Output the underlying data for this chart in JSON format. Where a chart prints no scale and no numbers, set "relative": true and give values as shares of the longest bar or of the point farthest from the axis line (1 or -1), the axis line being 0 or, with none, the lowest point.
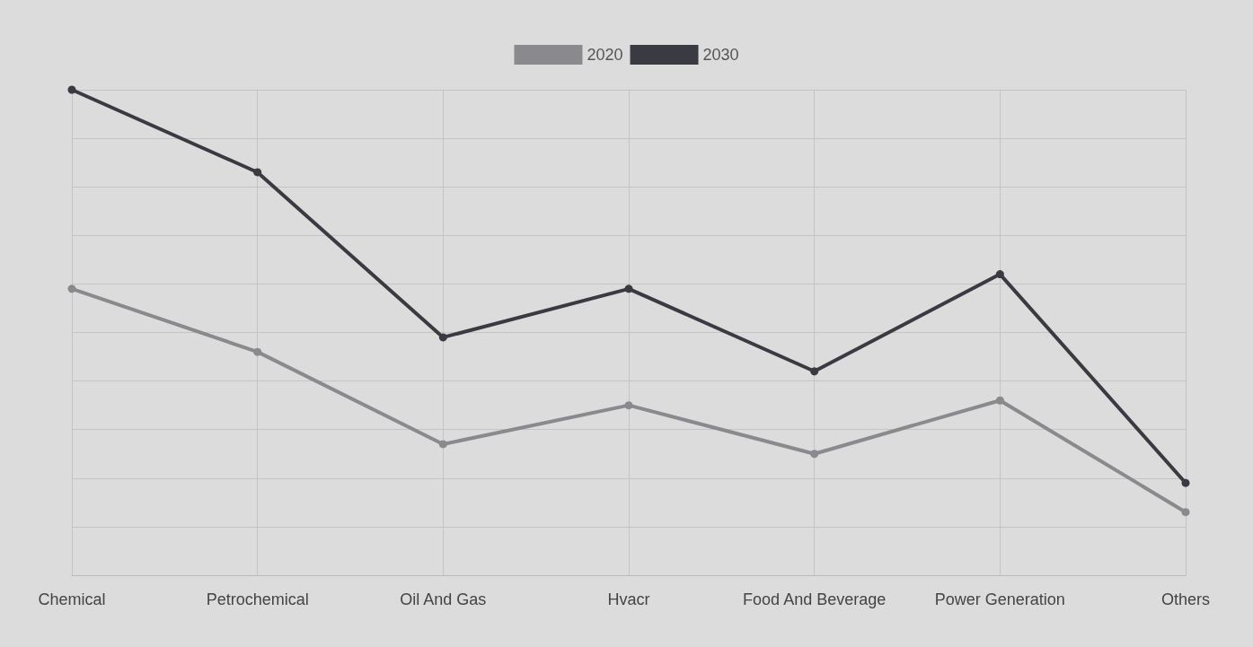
{
  "chart_data": {
    "type": "line",
    "relative": true,
    "categories": [
      "Chemical",
      "Petrochemical",
      "Oil And Gas",
      "Hvacr",
      "Food And Beverage",
      "Power Generation",
      "Others"
    ],
    "series": [
      {
        "name": "2020",
        "color": "#8a8a8e",
        "values": [
          0.59,
          0.46,
          0.27,
          0.35,
          0.25,
          0.36,
          0.13
        ]
      },
      {
        "name": "2030",
        "color": "#3a3a42",
        "values": [
          1,
          0.83,
          0.49,
          0.59,
          0.42,
          0.62,
          0.19
        ]
      }
    ],
    "grid": true,
    "legend": "top",
    "marker": "circle",
    "line_style": "solid"
  }
}
